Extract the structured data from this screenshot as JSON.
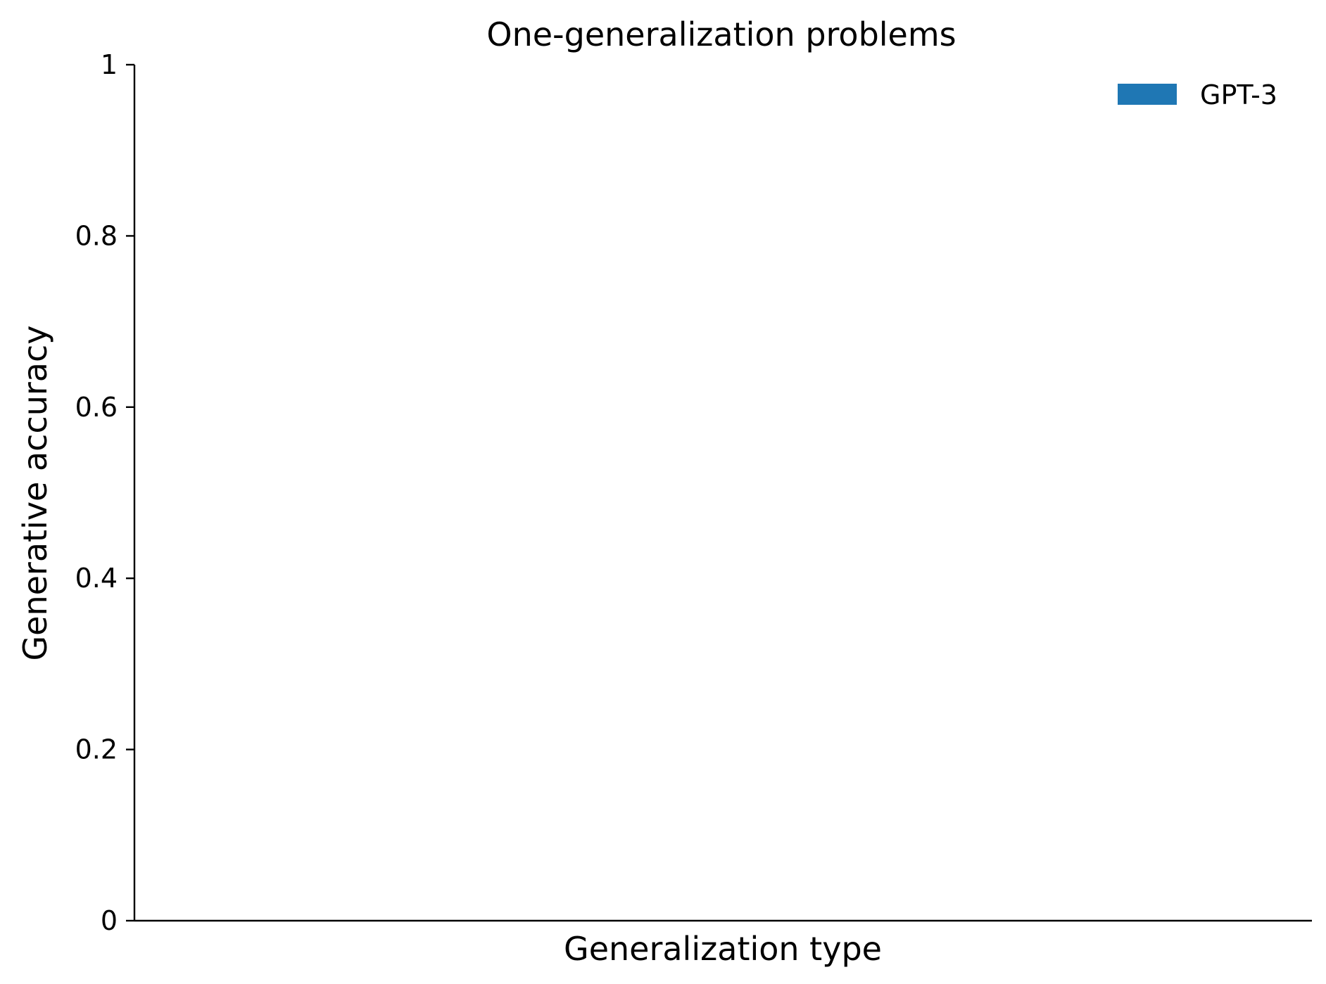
{
  "chart_data": {
    "type": "bar",
    "title": "One-generalization problems",
    "xlabel": "Generalization type",
    "ylabel": "Generative accuracy",
    "ylim": [
      0,
      1
    ],
    "yticks": [
      {
        "value": 0,
        "label": "0"
      },
      {
        "value": 0.2,
        "label": "0.2"
      },
      {
        "value": 0.4,
        "label": "0.4"
      },
      {
        "value": 0.6,
        "label": "0.6"
      },
      {
        "value": 0.8,
        "label": "0.8"
      },
      {
        "value": 1,
        "label": "1"
      }
    ],
    "categories": [],
    "series": [
      {
        "name": "GPT-3",
        "color": "#1f77b4",
        "values": []
      }
    ],
    "grid": false,
    "legend_position": "top-right"
  }
}
